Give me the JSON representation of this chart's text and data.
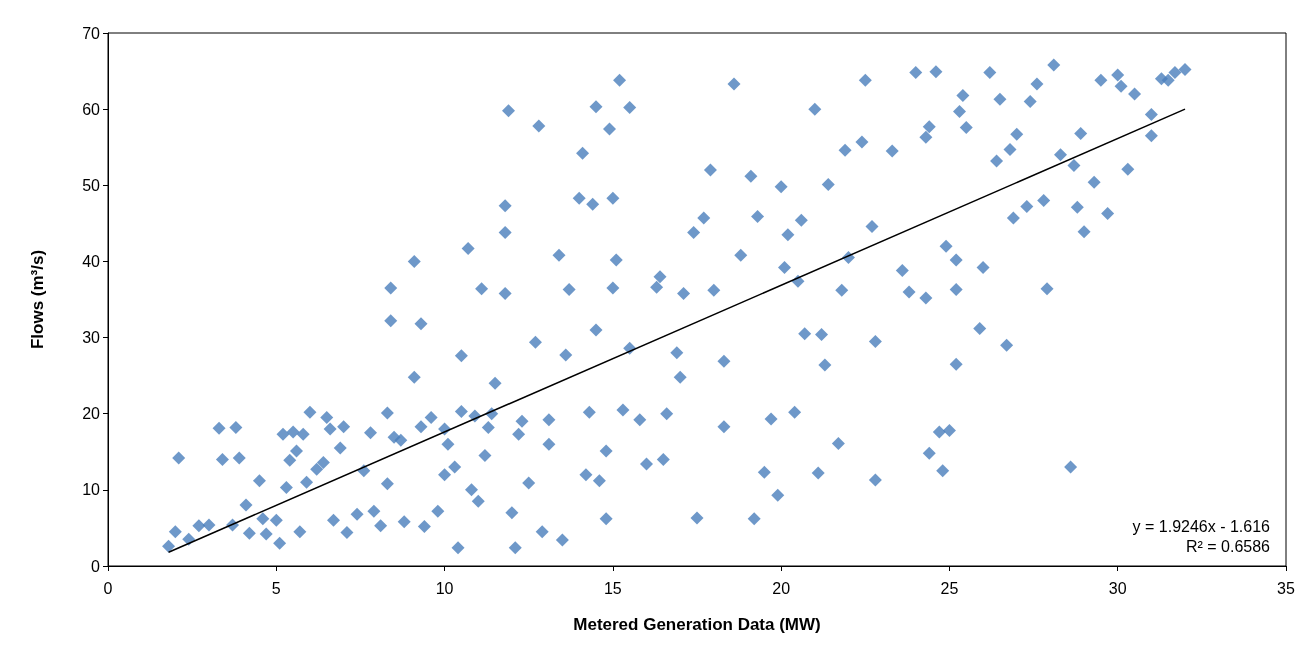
{
  "chart_data": {
    "type": "scatter",
    "xlabel": "Metered Generation Data (MW)",
    "ylabel": "Flows (m³/s)",
    "xlim": [
      0,
      35
    ],
    "ylim": [
      0,
      70
    ],
    "xticks": [
      0,
      5,
      10,
      15,
      20,
      25,
      30,
      35
    ],
    "yticks": [
      0,
      10,
      20,
      30,
      40,
      50,
      60,
      70
    ],
    "grid": false,
    "marker": "diamond",
    "annotations": [
      "y = 1.9246x - 1.616",
      "R² = 0.6586"
    ],
    "series": [
      {
        "color": "#4a7ebb",
        "x": [
          1.8,
          2,
          2.1,
          2.4,
          2.7,
          3,
          3.3,
          3.4,
          3.7,
          3.8,
          3.9,
          4.1,
          4.2,
          4.5,
          4.6,
          4.7,
          5,
          5.1,
          5.2,
          5.3,
          5.4,
          5.5,
          5.6,
          5.7,
          5.8,
          5.9,
          6,
          6.2,
          6.4,
          6.5,
          6.6,
          6.7,
          6.9,
          7,
          7.1,
          7.4,
          7.6,
          7.8,
          7.9,
          8.1,
          8.3,
          8.3,
          8.4,
          8.4,
          8.7,
          8.8,
          9.1,
          9.1,
          9.3,
          9.4,
          9.6,
          9.8,
          10,
          10,
          10.3,
          10.4,
          10.5,
          10.5,
          10.7,
          10.8,
          11,
          11.1,
          11.2,
          11.4,
          11.5,
          11.8,
          11.8,
          11.8,
          11.9,
          12,
          12.1,
          12.3,
          12.5,
          12.7,
          12.8,
          12.9,
          13.1,
          13.4,
          13.5,
          13.6,
          13.7,
          14,
          14.1,
          14.2,
          14.3,
          14.4,
          14.5,
          14.5,
          14.6,
          14.8,
          14.9,
          15,
          15,
          15.1,
          15.2,
          15.3,
          15.5,
          15.5,
          16,
          16.3,
          16.4,
          16.5,
          16.9,
          17,
          17.1,
          17.4,
          17.5,
          17.7,
          17.9,
          18,
          18.3,
          18.6,
          18.8,
          19.1,
          19.2,
          19.3,
          19.5,
          19.9,
          20,
          20.1,
          20.2,
          20.5,
          20.6,
          20.7,
          21,
          21.1,
          21.2,
          21.3,
          21.4,
          21.7,
          21.9,
          22,
          22.4,
          22.5,
          22.7,
          22.8,
          22.8,
          23.3,
          23.6,
          24,
          24.3,
          24.4,
          24.4,
          24.6,
          24.7,
          24.8,
          24.9,
          25,
          25.2,
          25.3,
          25.4,
          25.5,
          25.9,
          26,
          26.2,
          26.4,
          26.5,
          26.7,
          26.9,
          27,
          27.3,
          27.4,
          27.6,
          27.8,
          27.9,
          28.1,
          28.3,
          28.6,
          28.7,
          28.8,
          28.9,
          29,
          29.3,
          29.5,
          29.7,
          30,
          30.3,
          30.5,
          31,
          31,
          31.3,
          31.7,
          32,
          30.1,
          31.5,
          26.8,
          25.2,
          25.2,
          24.3,
          23.8,
          21.8,
          20.4,
          19.7,
          18.3,
          16.6,
          15.8,
          14.8,
          13.1,
          12.2,
          11.3,
          10.9,
          10.1,
          9.3,
          8.5
        ],
        "values": [
          2.6,
          4.5,
          14.2,
          3.5,
          5.3,
          5.4,
          18.1,
          14,
          5.4,
          18.2,
          14.2,
          8,
          4.3,
          11.2,
          6.2,
          4.2,
          6,
          3,
          17.3,
          10.3,
          13.9,
          17.6,
          15.1,
          4.5,
          17.3,
          11,
          20.2,
          12.7,
          13.6,
          19.5,
          18,
          6,
          15.5,
          18.3,
          4.4,
          6.8,
          12.5,
          17.5,
          7.2,
          5.3,
          20.1,
          10.8,
          36.5,
          32.2,
          16.5,
          5.8,
          40,
          24.8,
          31.8,
          5.2,
          19.5,
          7.2,
          12,
          18,
          13,
          2.4,
          20.3,
          27.6,
          41.7,
          10,
          8.5,
          36.4,
          14.5,
          20,
          24,
          47.3,
          43.8,
          35.8,
          59.8,
          7,
          2.4,
          19,
          10.9,
          29.4,
          57.8,
          4.5,
          16,
          40.8,
          3.4,
          27.7,
          36.3,
          48.3,
          54.2,
          12,
          20.2,
          47.5,
          31,
          60.3,
          11.2,
          6.2,
          57.4,
          48.3,
          36.5,
          40.2,
          63.8,
          20.5,
          60.2,
          28.6,
          13.4,
          36.6,
          38,
          14,
          28,
          24.8,
          35.8,
          43.8,
          6.3,
          45.7,
          52,
          36.2,
          26.9,
          63.3,
          40.8,
          51.2,
          6.2,
          45.9,
          12.3,
          9.3,
          49.8,
          39.2,
          43.5,
          37.4,
          45.4,
          30.5,
          60,
          12.2,
          30.4,
          26.4,
          50.1,
          16.1,
          54.6,
          40.5,
          55.7,
          63.8,
          44.6,
          29.5,
          11.3,
          54.5,
          38.8,
          64.8,
          56.3,
          57.7,
          14.8,
          64.9,
          17.6,
          12.5,
          42,
          17.8,
          26.5,
          59.7,
          61.8,
          57.6,
          31.2,
          39.2,
          64.8,
          53.2,
          61.3,
          29,
          45.7,
          56.7,
          47.2,
          61,
          63.3,
          48,
          36.4,
          65.8,
          54,
          13,
          52.6,
          47.1,
          56.8,
          43.9,
          50.4,
          63.8,
          46.3,
          64.5,
          52.1,
          62,
          56.5,
          59.3,
          64,
          64.8,
          65.2,
          63,
          63.8,
          54.7,
          40.2,
          36.3,
          35.2,
          36,
          36.2,
          20.2,
          19.3,
          18.3,
          20,
          19.2,
          15.1,
          19.2,
          17.3,
          18.2,
          19.7,
          16,
          18.3,
          16.9
        ]
      },
      {
        "type": "line",
        "color": "#000000",
        "line_style": "solid",
        "marker": "none",
        "x": [
          1.8,
          32
        ],
        "values": [
          1.8,
          60
        ]
      }
    ]
  }
}
